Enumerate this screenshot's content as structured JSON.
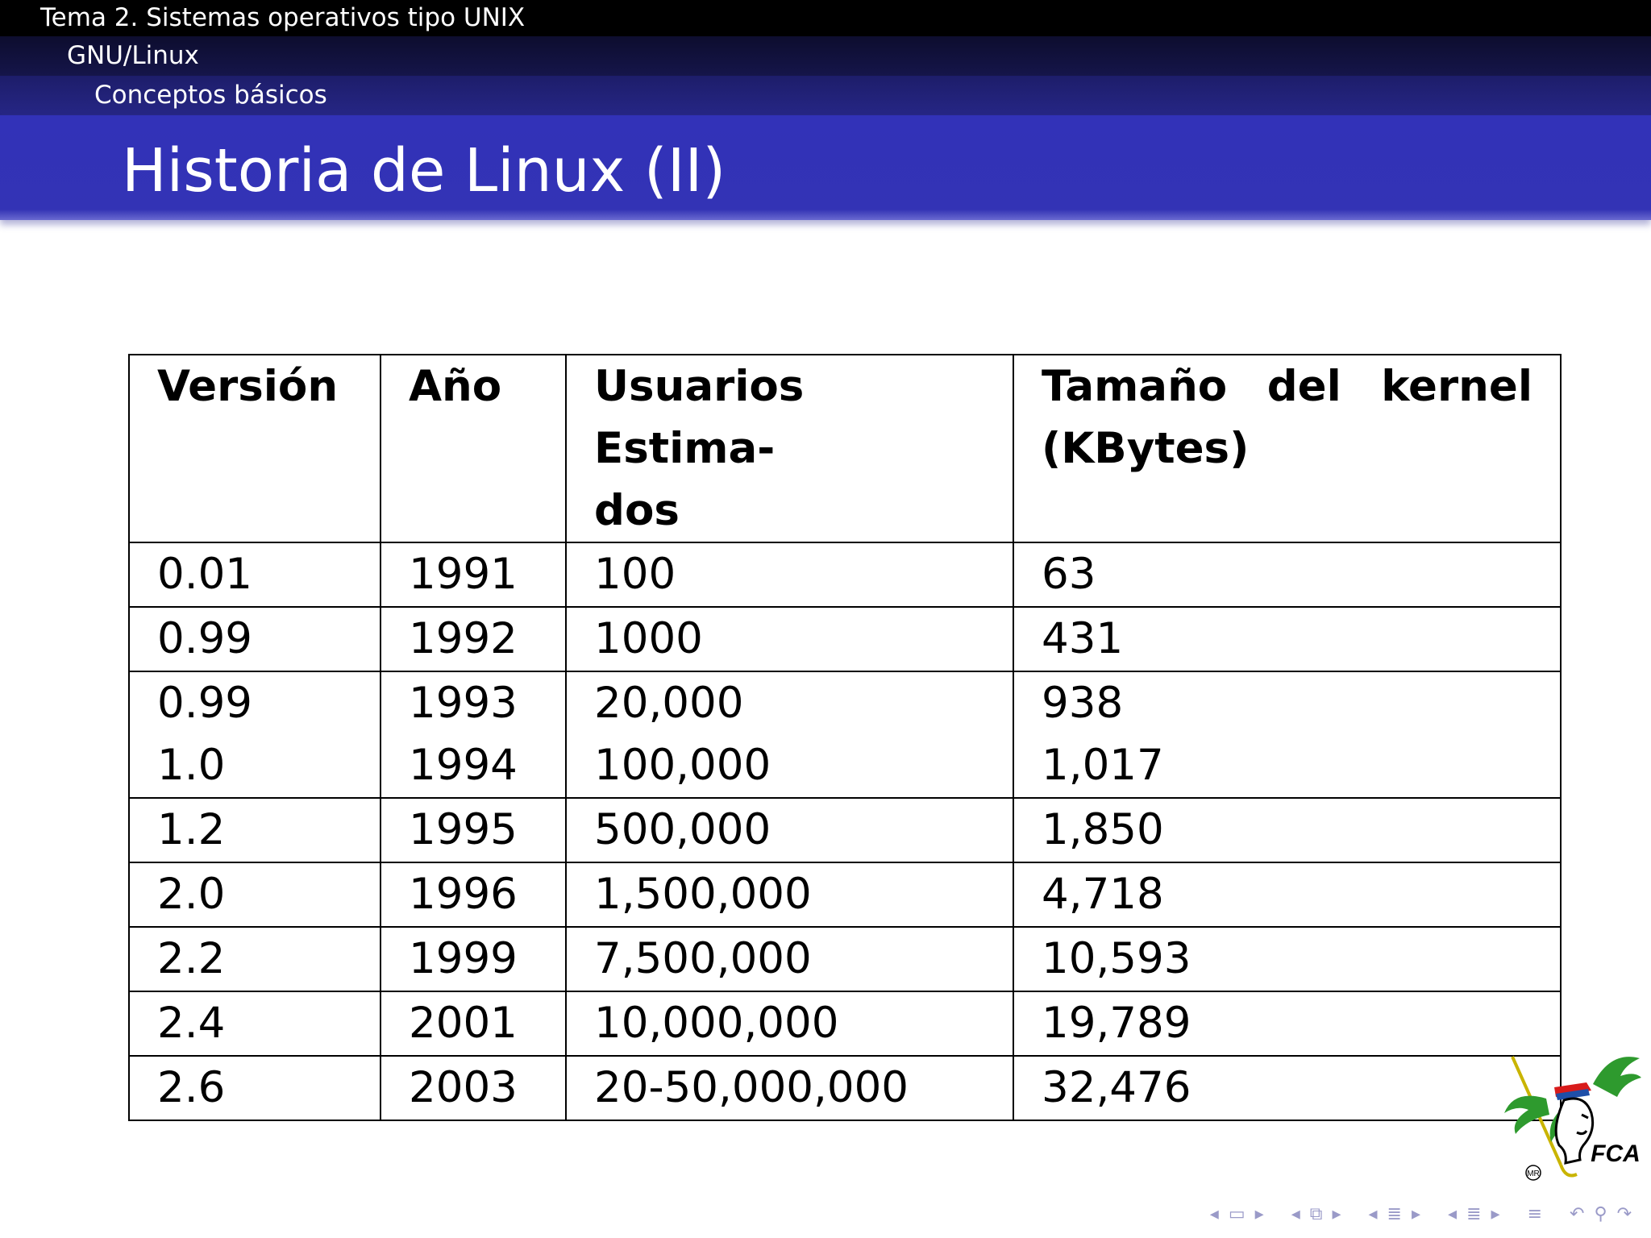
{
  "header": {
    "section": "Tema 2. Sistemas operativos tipo UNIX",
    "subsection": "GNU/Linux",
    "subsubsection": "Conceptos básicos"
  },
  "slide": {
    "title": "Historia de Linux (II)"
  },
  "table": {
    "headers": [
      "Versión",
      "Año",
      "Usuarios Estimados",
      "Tamaño del kernel (KBytes)"
    ],
    "rows": [
      {
        "version": "0.01",
        "year": "1991",
        "users": "100",
        "size": "63"
      },
      {
        "version": "0.99",
        "year": "1992",
        "users": "1000",
        "size": "431"
      },
      {
        "version": "0.99",
        "year": "1993",
        "users": "20,000",
        "size": "938"
      },
      {
        "version": "1.0",
        "year": "1994",
        "users": "100,000",
        "size": "1,017"
      },
      {
        "version": "1.2",
        "year": "1995",
        "users": "500,000",
        "size": "1,850"
      },
      {
        "version": "2.0",
        "year": "1996",
        "users": "1,500,000",
        "size": "4,718"
      },
      {
        "version": "2.2",
        "year": "1999",
        "users": "7,500,000",
        "size": "10,593"
      },
      {
        "version": "2.4",
        "year": "2001",
        "users": "10,000,000",
        "size": "19,789"
      },
      {
        "version": "2.6",
        "year": "2003",
        "users": "20-50,000,000",
        "size": "32,476"
      }
    ]
  },
  "logo": {
    "mark": "MR",
    "text": "FCA"
  },
  "navigation": {
    "icons": [
      "frame-prev-icon",
      "frame-icon",
      "frame-next-icon",
      "subsection-prev-icon",
      "subsection-icon",
      "subsection-next-icon",
      "section-prev-icon",
      "section-icon",
      "section-next-icon",
      "subsubsection-prev-icon",
      "subsubsection-icon",
      "subsubsection-next-icon",
      "align-icon",
      "back-search-icon",
      "search-icon",
      "forward-search-icon"
    ]
  },
  "colors": {
    "title_bar": "#3333b5",
    "header_dark": "#000000",
    "nav_icons": "#9a9ac8"
  }
}
